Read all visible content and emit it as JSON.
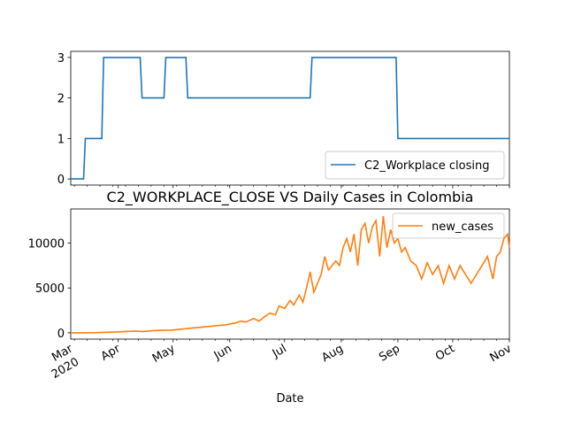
{
  "chart_data": [
    {
      "type": "line",
      "title": "",
      "xlabel": "",
      "ylabel": "",
      "x_range": [
        "2020-03-06",
        "2020-11-01"
      ],
      "ylim": [
        -0.15,
        3.15
      ],
      "yticks": [
        0,
        1,
        2,
        3
      ],
      "grid": false,
      "legend_position": "lower-right",
      "series": [
        {
          "name": "C2_Workplace closing",
          "color": "#1f77b4",
          "step": true,
          "points": [
            [
              "2020-03-06",
              0
            ],
            [
              "2020-03-13",
              0
            ],
            [
              "2020-03-14",
              1
            ],
            [
              "2020-03-23",
              1
            ],
            [
              "2020-03-24",
              3
            ],
            [
              "2020-04-13",
              3
            ],
            [
              "2020-04-14",
              2
            ],
            [
              "2020-04-26",
              2
            ],
            [
              "2020-04-27",
              3
            ],
            [
              "2020-05-08",
              3
            ],
            [
              "2020-05-09",
              2
            ],
            [
              "2020-07-15",
              2
            ],
            [
              "2020-07-16",
              3
            ],
            [
              "2020-08-31",
              3
            ],
            [
              "2020-09-01",
              1
            ],
            [
              "2020-11-01",
              1
            ]
          ]
        }
      ]
    },
    {
      "type": "line",
      "title": "C2_WORKPLACE_CLOSE VS Daily Cases in Colombia",
      "xlabel": "Date",
      "ylabel": "",
      "x_range": [
        "2020-03-06",
        "2020-11-01"
      ],
      "ylim": [
        -700,
        13800
      ],
      "yticks": [
        0,
        5000,
        10000
      ],
      "grid": false,
      "legend_position": "top-right",
      "series": [
        {
          "name": "new_cases",
          "color": "#ff7f0e",
          "step": false,
          "points": [
            [
              "2020-03-06",
              0
            ],
            [
              "2020-03-20",
              20
            ],
            [
              "2020-03-31",
              100
            ],
            [
              "2020-04-05",
              150
            ],
            [
              "2020-04-10",
              200
            ],
            [
              "2020-04-15",
              150
            ],
            [
              "2020-04-20",
              250
            ],
            [
              "2020-04-25",
              280
            ],
            [
              "2020-04-30",
              300
            ],
            [
              "2020-05-05",
              400
            ],
            [
              "2020-05-10",
              500
            ],
            [
              "2020-05-15",
              600
            ],
            [
              "2020-05-20",
              700
            ],
            [
              "2020-05-25",
              800
            ],
            [
              "2020-05-30",
              900
            ],
            [
              "2020-06-04",
              1100
            ],
            [
              "2020-06-07",
              1300
            ],
            [
              "2020-06-10",
              1200
            ],
            [
              "2020-06-14",
              1600
            ],
            [
              "2020-06-17",
              1300
            ],
            [
              "2020-06-20",
              1800
            ],
            [
              "2020-06-23",
              2200
            ],
            [
              "2020-06-26",
              2000
            ],
            [
              "2020-06-28",
              3000
            ],
            [
              "2020-07-01",
              2700
            ],
            [
              "2020-07-04",
              3600
            ],
            [
              "2020-07-06",
              3100
            ],
            [
              "2020-07-09",
              4200
            ],
            [
              "2020-07-11",
              3400
            ],
            [
              "2020-07-13",
              5000
            ],
            [
              "2020-07-15",
              6800
            ],
            [
              "2020-07-17",
              4500
            ],
            [
              "2020-07-19",
              5500
            ],
            [
              "2020-07-21",
              6500
            ],
            [
              "2020-07-23",
              8500
            ],
            [
              "2020-07-25",
              7000
            ],
            [
              "2020-07-27",
              7500
            ],
            [
              "2020-07-29",
              8000
            ],
            [
              "2020-07-31",
              7500
            ],
            [
              "2020-08-02",
              9500
            ],
            [
              "2020-08-04",
              10500
            ],
            [
              "2020-08-06",
              9000
            ],
            [
              "2020-08-08",
              11000
            ],
            [
              "2020-08-10",
              7500
            ],
            [
              "2020-08-12",
              11500
            ],
            [
              "2020-08-14",
              12200
            ],
            [
              "2020-08-16",
              10000
            ],
            [
              "2020-08-18",
              11800
            ],
            [
              "2020-08-20",
              12500
            ],
            [
              "2020-08-22",
              8500
            ],
            [
              "2020-08-24",
              13000
            ],
            [
              "2020-08-26",
              9500
            ],
            [
              "2020-08-28",
              11500
            ],
            [
              "2020-08-30",
              10000
            ],
            [
              "2020-09-01",
              10500
            ],
            [
              "2020-09-03",
              9000
            ],
            [
              "2020-09-05",
              9500
            ],
            [
              "2020-09-08",
              8000
            ],
            [
              "2020-09-11",
              7500
            ],
            [
              "2020-09-14",
              6000
            ],
            [
              "2020-09-17",
              7800
            ],
            [
              "2020-09-20",
              6500
            ],
            [
              "2020-09-23",
              7500
            ],
            [
              "2020-09-26",
              5500
            ],
            [
              "2020-09-29",
              7500
            ],
            [
              "2020-10-02",
              6000
            ],
            [
              "2020-10-05",
              7500
            ],
            [
              "2020-10-08",
              6500
            ],
            [
              "2020-10-11",
              5500
            ],
            [
              "2020-10-14",
              6500
            ],
            [
              "2020-10-17",
              7500
            ],
            [
              "2020-10-20",
              8500
            ],
            [
              "2020-10-23",
              6000
            ],
            [
              "2020-10-25",
              8500
            ],
            [
              "2020-10-27",
              9000
            ],
            [
              "2020-10-29",
              10500
            ],
            [
              "2020-10-31",
              11000
            ],
            [
              "2020-11-01",
              9500
            ]
          ]
        }
      ]
    }
  ],
  "x_axis": {
    "ticks": [
      {
        "date": "2020-03-01",
        "label": "Mar",
        "sub": "2020"
      },
      {
        "date": "2020-04-01",
        "label": "Apr",
        "sub": ""
      },
      {
        "date": "2020-05-01",
        "label": "May",
        "sub": ""
      },
      {
        "date": "2020-06-01",
        "label": "Jun",
        "sub": ""
      },
      {
        "date": "2020-07-01",
        "label": "Jul",
        "sub": ""
      },
      {
        "date": "2020-08-01",
        "label": "Aug",
        "sub": ""
      },
      {
        "date": "2020-09-01",
        "label": "Sep",
        "sub": ""
      },
      {
        "date": "2020-10-01",
        "label": "Oct",
        "sub": ""
      },
      {
        "date": "2020-11-01",
        "label": "Nov",
        "sub": ""
      }
    ]
  }
}
